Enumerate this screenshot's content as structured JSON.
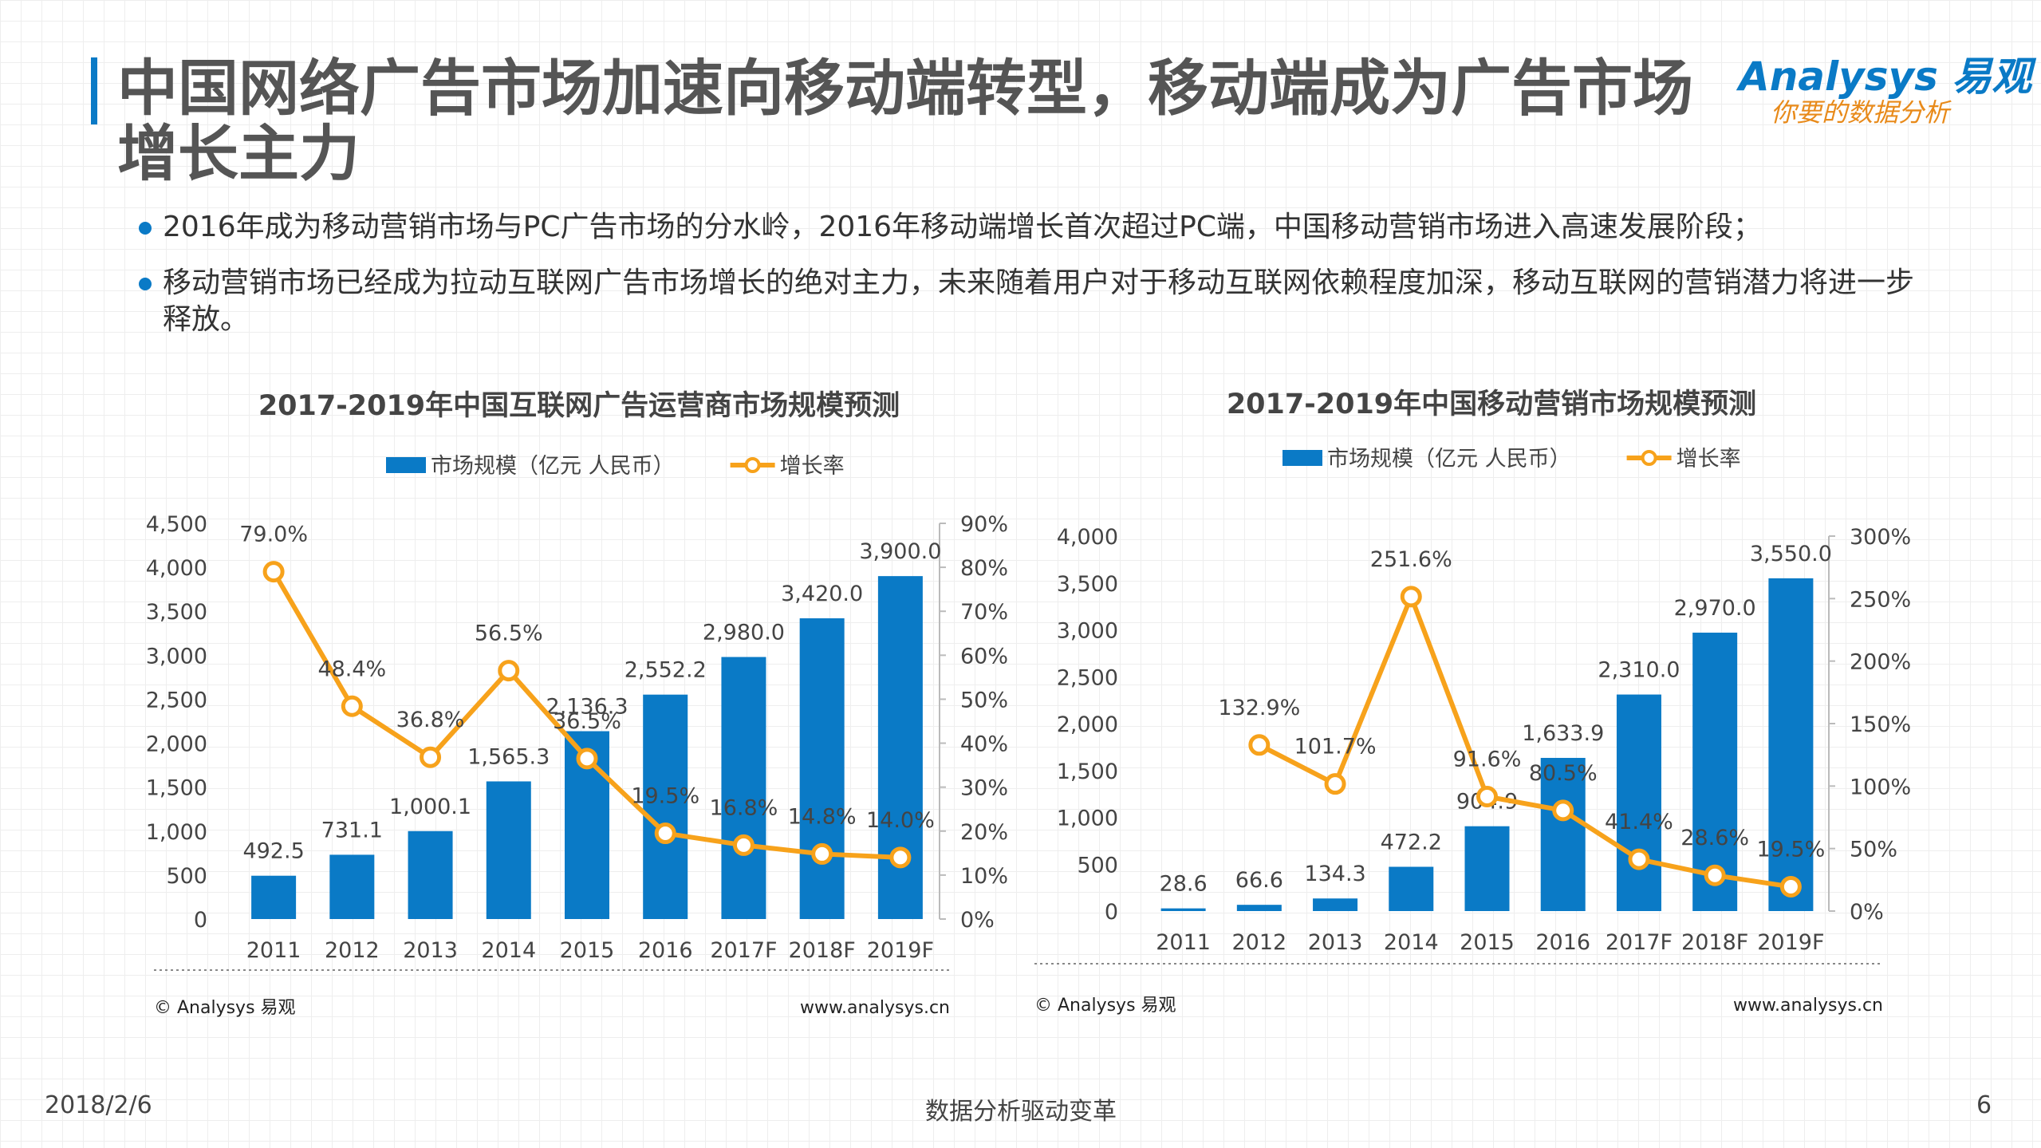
{
  "title": "中国网络广告市场加速向移动端转型，移动端成为广告市场增长主力",
  "logo": {
    "brand": "Analysys 易观",
    "slogan": "你要的数据分析"
  },
  "bullets": [
    "2016年成为移动营销市场与PC广告市场的分水岭，2016年移动端增长首次超过PC端，中国移动营销市场进入高速发展阶段；",
    "移动营销市场已经成为拉动互联网广告市场增长的绝对主力，未来随着用户对于移动互联网依赖程度加深，移动互联网的营销潜力将进一步释放。"
  ],
  "chart_data": [
    {
      "type": "combo",
      "title": "2017-2019年中国互联网广告运营商市场规模预测",
      "categories": [
        "2011",
        "2012",
        "2013",
        "2014",
        "2015",
        "2016",
        "2017F",
        "2018F",
        "2019F"
      ],
      "series": [
        {
          "name": "市场规模（亿元 人民币）",
          "type": "bar",
          "color": "#0a7ac6",
          "values": [
            492.5,
            731.1,
            1000.1,
            1565.3,
            2136.3,
            2552.2,
            2980.0,
            3420.0,
            3900.0
          ],
          "value_labels": [
            "492.5",
            "731.1",
            "1,000.1",
            "1,565.3",
            "2,136.3",
            "2,552.2",
            "2,980.0",
            "3,420.0",
            "3,900.0"
          ]
        },
        {
          "name": "增长率",
          "type": "line",
          "axis": "y2",
          "color": "#f7a21b",
          "values": [
            79.0,
            48.4,
            36.8,
            56.5,
            36.5,
            19.5,
            16.8,
            14.8,
            14.0
          ],
          "value_labels": [
            "79.0%",
            "48.4%",
            "36.8%",
            "56.5%",
            "36.5%",
            "19.5%",
            "16.8%",
            "14.8%",
            "14.0%"
          ]
        }
      ],
      "ylim": [
        0,
        4500
      ],
      "yticks": [
        0,
        500,
        {
          "value": 1000,
          "label": "1,000"
        },
        {
          "value": 1500,
          "label": "1,500"
        },
        {
          "value": 2000,
          "label": "2,000"
        },
        {
          "value": 2500,
          "label": "2,500"
        },
        {
          "value": 3000,
          "label": "3,000"
        },
        {
          "value": 3500,
          "label": "3,500"
        },
        {
          "value": 4000,
          "label": "4,000"
        },
        {
          "value": 4500,
          "label": "4,500"
        }
      ],
      "y2lim": [
        0,
        90
      ],
      "y2ticks": [
        {
          "value": 0,
          "label": "0%"
        },
        {
          "value": 10,
          "label": "10%"
        },
        {
          "value": 20,
          "label": "20%"
        },
        {
          "value": 30,
          "label": "30%"
        },
        {
          "value": 40,
          "label": "40%"
        },
        {
          "value": 50,
          "label": "50%"
        },
        {
          "value": 60,
          "label": "60%"
        },
        {
          "value": 70,
          "label": "70%"
        },
        {
          "value": 80,
          "label": "80%"
        },
        {
          "value": 90,
          "label": "90%"
        }
      ],
      "source": "© Analysys 易观",
      "website": "www.analysys.cn"
    },
    {
      "type": "combo",
      "title": "2017-2019年中国移动营销市场规模预测",
      "categories": [
        "2011",
        "2012",
        "2013",
        "2014",
        "2015",
        "2016",
        "2017F",
        "2018F",
        "2019F"
      ],
      "series": [
        {
          "name": "市场规模（亿元 人民币）",
          "type": "bar",
          "color": "#0a7ac6",
          "values": [
            28.6,
            66.6,
            134.3,
            472.2,
            904.9,
            1633.9,
            2310.0,
            2970.0,
            3550.0
          ],
          "value_labels": [
            "28.6",
            "66.6",
            "134.3",
            "472.2",
            "904.9",
            "1,633.9",
            "2,310.0",
            "2,970.0",
            "3,550.0"
          ]
        },
        {
          "name": "增长率",
          "type": "line",
          "axis": "y2",
          "color": "#f7a21b",
          "values": [
            null,
            132.9,
            101.7,
            251.6,
            91.6,
            80.5,
            41.4,
            28.6,
            19.5
          ],
          "value_labels": [
            null,
            "132.9%",
            "101.7%",
            "251.6%",
            "91.6%",
            "80.5%",
            "41.4%",
            "28.6%",
            "19.5%"
          ]
        }
      ],
      "ylim": [
        0,
        4000
      ],
      "yticks": [
        0,
        500,
        {
          "value": 1000,
          "label": "1,000"
        },
        {
          "value": 1500,
          "label": "1,500"
        },
        {
          "value": 2000,
          "label": "2,000"
        },
        {
          "value": 2500,
          "label": "2,500"
        },
        {
          "value": 3000,
          "label": "3,000"
        },
        {
          "value": 3500,
          "label": "3,500"
        },
        {
          "value": 4000,
          "label": "4,000"
        }
      ],
      "y2lim": [
        0,
        300
      ],
      "y2ticks": [
        {
          "value": 0,
          "label": "0%"
        },
        {
          "value": 50,
          "label": "50%"
        },
        {
          "value": 100,
          "label": "100%"
        },
        {
          "value": 150,
          "label": "150%"
        },
        {
          "value": 200,
          "label": "200%"
        },
        {
          "value": 250,
          "label": "250%"
        },
        {
          "value": 300,
          "label": "300%"
        }
      ],
      "source": "© Analysys 易观",
      "website": "www.analysys.cn"
    }
  ],
  "footer": {
    "date": "2018/2/6",
    "slogan": "数据分析驱动变革",
    "page": "6"
  }
}
